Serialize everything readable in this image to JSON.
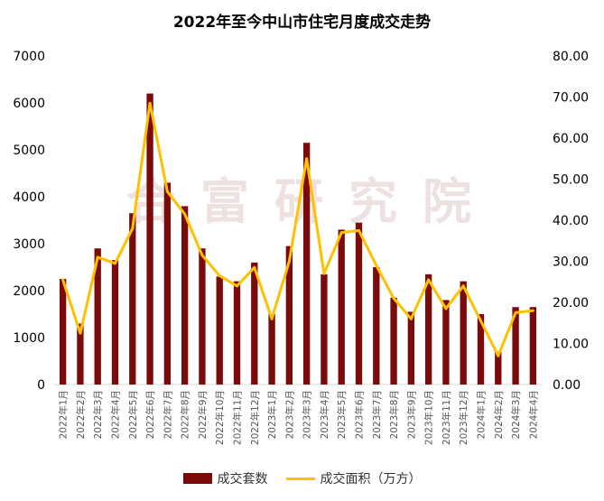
{
  "chart_data": {
    "type": "bar",
    "title": "2022年至今中山市住宅月度成交走势",
    "categories": [
      "2022年1月",
      "2022年2月",
      "2022年3月",
      "2022年4月",
      "2022年5月",
      "2022年6月",
      "2022年7月",
      "2022年8月",
      "2022年9月",
      "2022年10月",
      "2022年11月",
      "2022年12月",
      "2023年1月",
      "2023年2月",
      "2023年3月",
      "2023年4月",
      "2023年5月",
      "2023年6月",
      "2023年7月",
      "2023年8月",
      "2023年9月",
      "2023年10月",
      "2023年11月",
      "2023年12月",
      "2024年1月",
      "2024年2月",
      "2024年3月",
      "2024年4月"
    ],
    "series": [
      {
        "name": "成交套数",
        "type": "bar",
        "axis": "left",
        "color": "#7b0a0a",
        "values": [
          2250,
          1300,
          2900,
          2650,
          3650,
          6200,
          4300,
          3800,
          2900,
          2300,
          2200,
          2600,
          1500,
          2950,
          5150,
          2350,
          3300,
          3450,
          2500,
          1850,
          1550,
          2350,
          1800,
          2200,
          1500,
          700,
          1650,
          1650
        ]
      },
      {
        "name": "成交面积（万方）",
        "type": "line",
        "axis": "right",
        "color": "#ffc000",
        "values": [
          25.5,
          12.5,
          31,
          29.5,
          38,
          68.5,
          47,
          41.5,
          31.5,
          26.5,
          24,
          28.5,
          16,
          30,
          55,
          27,
          37,
          37.5,
          29,
          21,
          16,
          25.5,
          18.5,
          24,
          15.5,
          7,
          17.5,
          18
        ]
      }
    ],
    "yleft": {
      "ticks": [
        "0",
        "1000",
        "2000",
        "3000",
        "4000",
        "5000",
        "6000",
        "7000"
      ],
      "ylim": [
        0,
        7000
      ]
    },
    "yright": {
      "ticks": [
        "0.00",
        "10.00",
        "20.00",
        "30.00",
        "40.00",
        "50.00",
        "60.00",
        "70.00",
        "80.00"
      ],
      "ylim": [
        0,
        80
      ]
    },
    "grid": false,
    "legend_position": "bottom",
    "watermark": "合富研究院"
  }
}
